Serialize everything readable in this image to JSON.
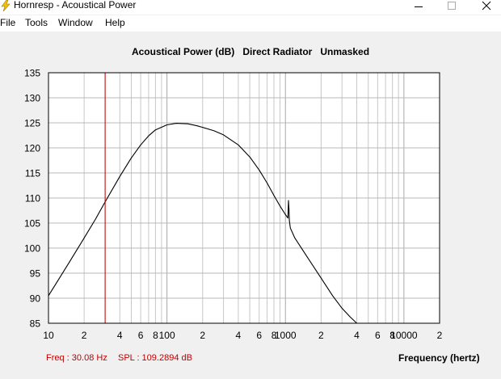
{
  "window": {
    "title": "Hornresp - Acoustical Power",
    "icon": "lightning-icon",
    "controls": [
      "minimize-icon",
      "maximize-icon",
      "close-icon"
    ]
  },
  "menu": {
    "items": [
      {
        "label": "File"
      },
      {
        "label": "Tools"
      },
      {
        "label": "Window"
      },
      {
        "label": "Help"
      }
    ]
  },
  "chart": {
    "title_parts": [
      "Acoustical Power (dB)",
      "Direct Radiator",
      "Unmasked"
    ],
    "freq_readout": "Freq : 30.08 Hz",
    "spl_readout": "SPL : 109.2894 dB",
    "xlabel": "Frequency (hertz)",
    "colors": {
      "curve": "#000000",
      "cursor": "#c00000",
      "grid": "#c8c8c8",
      "plot_bg": "#ffffff"
    }
  },
  "chart_data": {
    "type": "line",
    "title": "Acoustical Power (dB)   Direct Radiator   Unmasked",
    "xlabel": "Frequency (hertz)",
    "ylabel": "",
    "xscale": "log",
    "xlim": [
      10,
      20000
    ],
    "ylim": [
      85,
      135
    ],
    "yticks": [
      85,
      90,
      95,
      100,
      105,
      110,
      115,
      120,
      125,
      130,
      135
    ],
    "xtick_labels": [
      {
        "value": 10,
        "label": "10"
      },
      {
        "value": 20,
        "label": "2"
      },
      {
        "value": 40,
        "label": "4"
      },
      {
        "value": 60,
        "label": "6"
      },
      {
        "value": 80,
        "label": "8"
      },
      {
        "value": 100,
        "label": "100"
      },
      {
        "value": 200,
        "label": "2"
      },
      {
        "value": 400,
        "label": "4"
      },
      {
        "value": 600,
        "label": "6"
      },
      {
        "value": 800,
        "label": "8"
      },
      {
        "value": 1000,
        "label": "1000"
      },
      {
        "value": 2000,
        "label": "2"
      },
      {
        "value": 4000,
        "label": "4"
      },
      {
        "value": 6000,
        "label": "6"
      },
      {
        "value": 8000,
        "label": "8"
      },
      {
        "value": 10000,
        "label": "10000"
      },
      {
        "value": 20000,
        "label": "2"
      }
    ],
    "grid": true,
    "cursor": {
      "x": 30.08,
      "y": 109.2894
    },
    "series": [
      {
        "x": [
          10,
          12,
          15,
          20,
          25,
          30,
          40,
          50,
          60,
          70,
          80,
          100,
          120,
          150,
          180,
          200,
          250,
          300,
          400,
          500,
          600,
          700,
          800,
          900,
          1000,
          1050,
          1060,
          1070,
          1080,
          1100,
          1200,
          1500,
          2000,
          2500,
          3000,
          3500,
          4000
        ],
        "y": [
          90.5,
          93.5,
          97.2,
          102.0,
          105.8,
          109.2,
          114.3,
          118.0,
          120.6,
          122.4,
          123.6,
          124.6,
          124.9,
          124.8,
          124.4,
          124.1,
          123.4,
          122.6,
          120.6,
          118.2,
          115.6,
          113.0,
          110.5,
          108.4,
          106.7,
          106.0,
          109.5,
          107.8,
          105.5,
          104.0,
          102.0,
          98.5,
          94.0,
          90.5,
          88.0,
          86.3,
          85.0
        ]
      }
    ]
  }
}
